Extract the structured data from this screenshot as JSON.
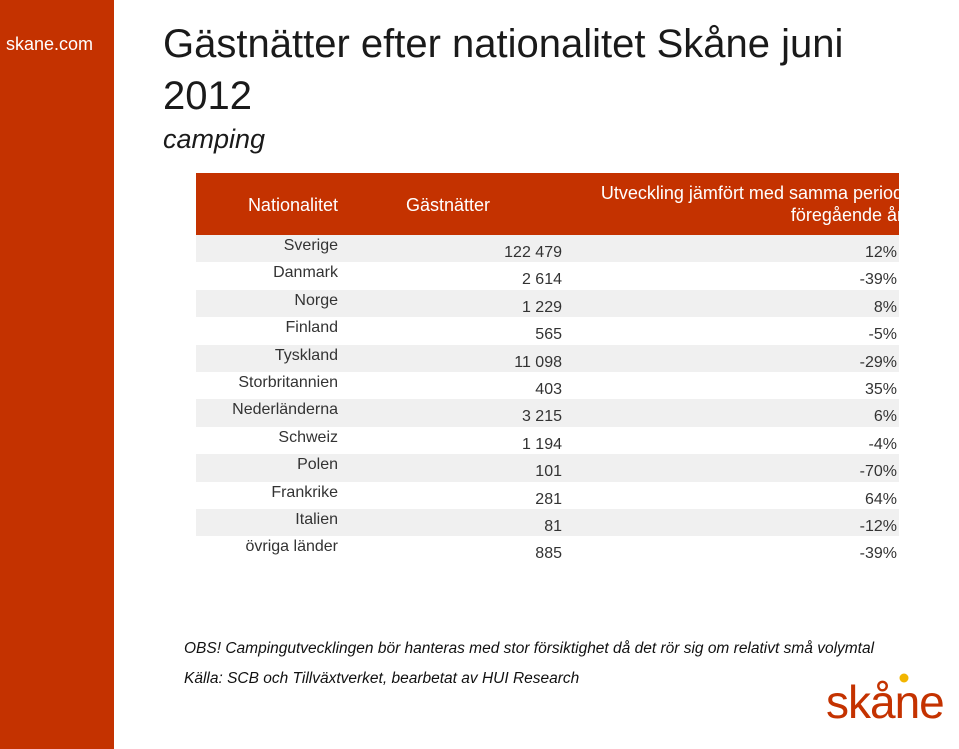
{
  "sidebar": {
    "site": "skane.com"
  },
  "title": "Gästnätter efter nationalitet Skåne juni 2012",
  "subtitle": "camping",
  "table": {
    "headers": {
      "nationality": "Nationalitet",
      "nights": "Gästnätter",
      "development_line1": "Utveckling jämfört med samma period",
      "development_line2": "föregående år"
    },
    "rows": [
      {
        "country": "Sverige",
        "nights": "122 479",
        "change": "12%"
      },
      {
        "country": "Danmark",
        "nights": "2 614",
        "change": "-39%"
      },
      {
        "country": "Norge",
        "nights": "1 229",
        "change": "8%"
      },
      {
        "country": "Finland",
        "nights": "565",
        "change": "-5%"
      },
      {
        "country": "Tyskland",
        "nights": "11 098",
        "change": "-29%"
      },
      {
        "country": "Storbritannien",
        "nights": "403",
        "change": "35%"
      },
      {
        "country": "Nederländerna",
        "nights": "3 215",
        "change": "6%"
      },
      {
        "country": "Schweiz",
        "nights": "1 194",
        "change": "-4%"
      },
      {
        "country": "Polen",
        "nights": "101",
        "change": "-70%"
      },
      {
        "country": "Frankrike",
        "nights": "281",
        "change": "64%"
      },
      {
        "country": "Italien",
        "nights": "81",
        "change": "-12%"
      },
      {
        "country": "övriga länder",
        "nights": "885",
        "change": "-39%"
      }
    ]
  },
  "note": "OBS! Campingutvecklingen bör hanteras med stor försiktighet då det rör sig om relativt små volymtal",
  "source": "Källa: SCB och Tillväxtverket, bearbetat av HUI Research",
  "logo": {
    "text": "skane",
    "accent_color": "#c43200",
    "dot_color": "#f2b500"
  }
}
